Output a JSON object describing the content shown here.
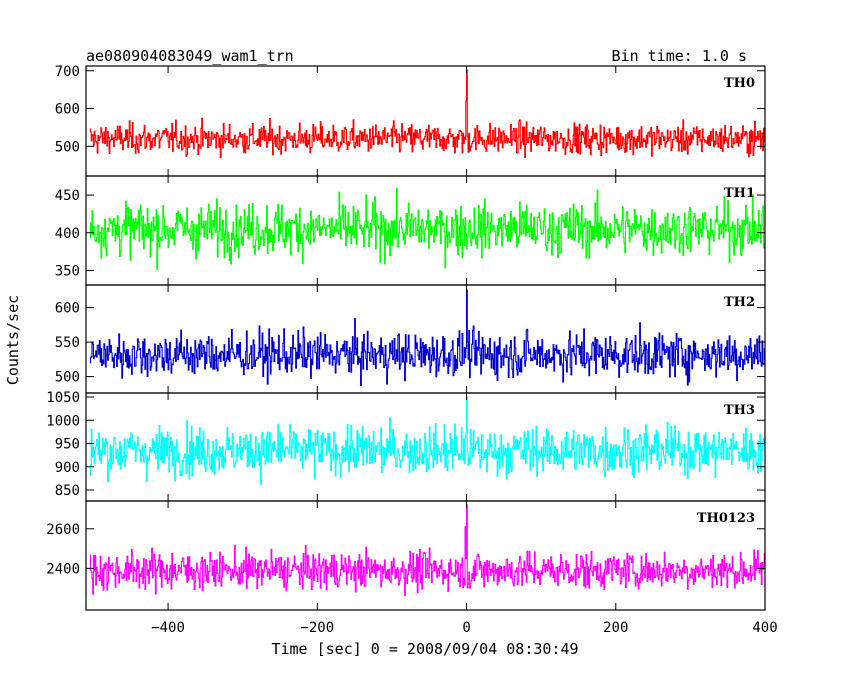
{
  "chart_data": {
    "type": "line",
    "title_left": "ae080904083049_wam1_trn",
    "title_right": "Bin time: 1.0 s",
    "xlabel": "Time [sec] 0 = 2008/09/04 08:30:49",
    "ylabel": "Counts/sec",
    "xlim": [
      -510,
      400
    ],
    "x_ticks": [
      -400,
      -200,
      0,
      200,
      400
    ],
    "x_tick_labels": [
      "−400",
      "−200",
      "0",
      "200",
      "400"
    ],
    "x_step_sec": 1,
    "grid": false,
    "panels": [
      {
        "name": "TH0",
        "color": "#ff0000",
        "ylim": [
          432,
          702
        ],
        "y_ticks": [
          500,
          600,
          700
        ],
        "mean": 520,
        "sigma": 23,
        "spikes": [
          {
            "x": 0,
            "y": 702
          },
          {
            "x": -1,
            "y": 620
          }
        ]
      },
      {
        "name": "TH1",
        "color": "#00ff00",
        "ylim": [
          336,
          470
        ],
        "y_ticks": [
          350,
          400,
          450
        ],
        "mean": 405,
        "sigma": 20,
        "spikes": []
      },
      {
        "name": "TH2",
        "color": "#0000cc",
        "ylim": [
          482,
          627
        ],
        "y_ticks": [
          500,
          550,
          600
        ],
        "mean": 532,
        "sigma": 19,
        "spikes": [
          {
            "x": 0,
            "y": 625
          }
        ]
      },
      {
        "name": "TH3",
        "color": "#00ffff",
        "ylim": [
          835,
          1050
        ],
        "y_ticks": [
          850,
          900,
          950,
          1000,
          1050
        ],
        "mean": 935,
        "sigma": 30,
        "spikes": [
          {
            "x": 0,
            "y": 1050
          }
        ]
      },
      {
        "name": "TH0123",
        "color": "#ff00ff",
        "ylim": [
          2210,
          2720
        ],
        "y_ticks": [
          2400,
          2600
        ],
        "mean": 2390,
        "sigma": 55,
        "spikes": [
          {
            "x": 0,
            "y": 2720
          },
          {
            "x": -2,
            "y": 2610
          }
        ]
      }
    ]
  }
}
